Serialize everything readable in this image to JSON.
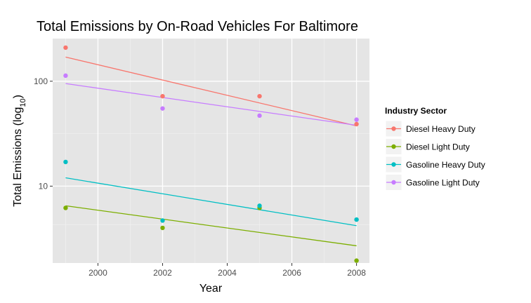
{
  "chart_data": {
    "type": "scatter",
    "title": "Total Emissions by On-Road Vehicles For Baltimore",
    "xlabel": "Year",
    "ylabel_prefix": "Total Emissions (log",
    "ylabel_sub": "10",
    "ylabel_suffix": ")",
    "y_scale": "log10",
    "xlim": [
      1998.6,
      2008.4
    ],
    "ylim": [
      1.85,
      255
    ],
    "x_ticks": [
      2000,
      2002,
      2004,
      2006,
      2008
    ],
    "x_tick_labels": [
      "2000",
      "2002",
      "2004",
      "2006",
      "2008"
    ],
    "y_ticks": [
      10,
      100
    ],
    "y_tick_labels": [
      "10",
      "100"
    ],
    "grid": true,
    "legend": {
      "title": "Industry Sector",
      "placement": "right"
    },
    "series": [
      {
        "name": "Diesel Heavy Duty",
        "color": "#F8766D",
        "x": [
          1999,
          2002,
          2005,
          2008
        ],
        "y": [
          209,
          72,
          72,
          39
        ],
        "trend": [
          [
            1999,
            170
          ],
          [
            2008,
            37.5
          ]
        ]
      },
      {
        "name": "Diesel Light Duty",
        "color": "#7CAE00",
        "x": [
          1999,
          2002,
          2005,
          2008
        ],
        "y": [
          6.2,
          4.0,
          6.2,
          1.95
        ],
        "trend": [
          [
            1999,
            6.5
          ],
          [
            2008,
            2.7
          ]
        ]
      },
      {
        "name": "Gasoline Heavy Duty",
        "color": "#00BFC4",
        "x": [
          1999,
          2002,
          2005,
          2008
        ],
        "y": [
          17,
          4.7,
          6.5,
          4.8
        ],
        "trend": [
          [
            1999,
            12
          ],
          [
            2008,
            4.2
          ]
        ]
      },
      {
        "name": "Gasoline Light Duty",
        "color": "#C77CFF",
        "x": [
          1999,
          2002,
          2005,
          2008
        ],
        "y": [
          113,
          55,
          47,
          43
        ],
        "trend": [
          [
            1999,
            95
          ],
          [
            2008,
            38
          ]
        ]
      }
    ]
  }
}
